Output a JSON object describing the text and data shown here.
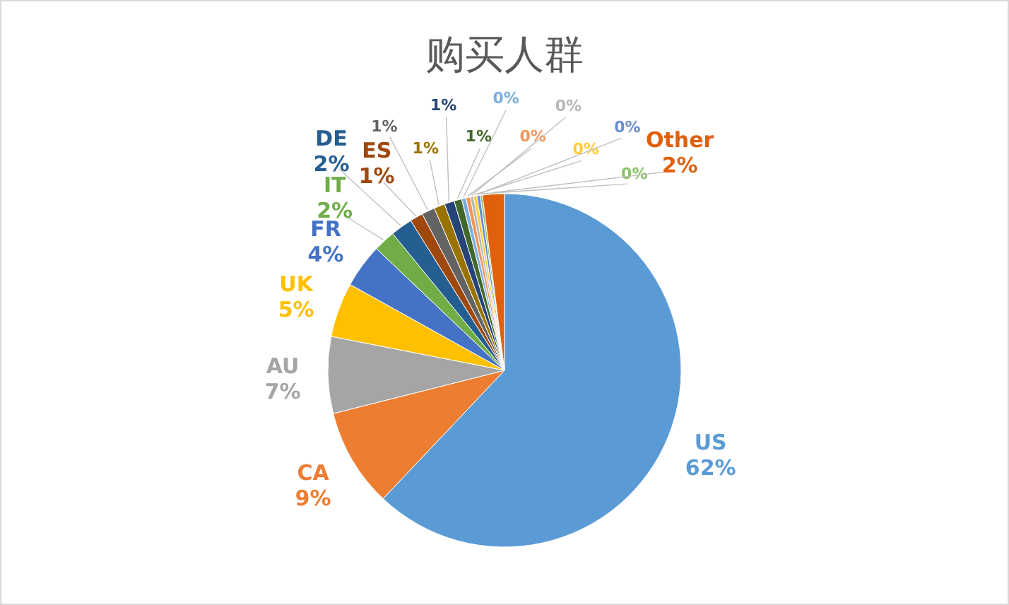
{
  "chart_data": {
    "type": "pie",
    "title": "购买人群",
    "categories": [
      "US",
      "CA",
      "AU",
      "UK",
      "FR",
      "IT",
      "DE",
      "ES",
      null,
      null,
      null,
      null,
      null,
      null,
      null,
      null,
      null,
      null,
      "Other"
    ],
    "values": [
      62,
      9,
      7,
      5,
      4,
      2,
      2,
      1.2,
      1.2,
      1,
      0.9,
      0.7,
      0.4,
      0.4,
      0.3,
      0.3,
      0.3,
      0.2,
      2.0
    ],
    "value_labels": [
      "62%",
      "9%",
      "7%",
      "5%",
      "4%",
      "2%",
      "2%",
      "1%",
      "1%",
      "1%",
      "1%",
      "1%",
      "0%",
      "0%",
      "0%",
      "0%",
      "0%",
      "0%",
      "2%"
    ],
    "colors": [
      "#5b9bd5",
      "#ed7d31",
      "#a5a5a5",
      "#ffc000",
      "#4472c4",
      "#70ad47",
      "#255e91",
      "#9e480e",
      "#636363",
      "#997300",
      "#264478",
      "#43682b",
      "#7cafdd",
      "#f1975a",
      "#b7b7b7",
      "#ffcd33",
      "#698ed0",
      "#8cc168",
      "#e0600e"
    ]
  }
}
